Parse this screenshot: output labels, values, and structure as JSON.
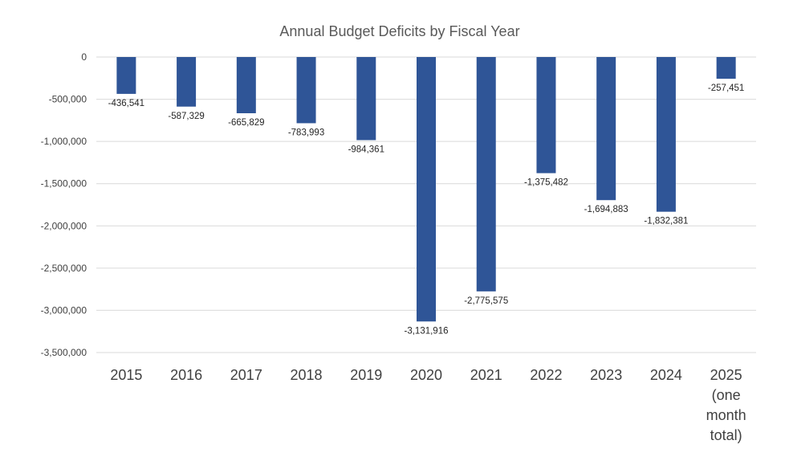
{
  "chart_data": {
    "type": "bar",
    "title": "Annual Budget Deficits by Fiscal Year",
    "xlabel": "",
    "ylabel": "",
    "categories": [
      "2015",
      "2016",
      "2017",
      "2018",
      "2019",
      "2020",
      "2021",
      "2022",
      "2023",
      "2024",
      "2025 (one month total)"
    ],
    "category_lines": [
      [
        "2015"
      ],
      [
        "2016"
      ],
      [
        "2017"
      ],
      [
        "2018"
      ],
      [
        "2019"
      ],
      [
        "2020"
      ],
      [
        "2021"
      ],
      [
        "2022"
      ],
      [
        "2023"
      ],
      [
        "2024"
      ],
      [
        "2025",
        "(one",
        "month",
        "total)"
      ]
    ],
    "values": [
      -436541,
      -587329,
      -665829,
      -783993,
      -984361,
      -3131916,
      -2775575,
      -1375482,
      -1694883,
      -1832381,
      -257451
    ],
    "data_labels": [
      "-436,541",
      "-587,329",
      "-665,829",
      "-783,993",
      "-984,361",
      "-3,131,916",
      "-2,775,575",
      "-1,375,482",
      "-1,694,883",
      "-1,832,381",
      "-257,451"
    ],
    "ylim": [
      -3500000,
      0
    ],
    "y_ticks": [
      0,
      -500000,
      -1000000,
      -1500000,
      -2000000,
      -2500000,
      -3000000,
      -3500000
    ],
    "y_tick_labels": [
      "0",
      "-500,000",
      "-1,000,000",
      "-1,500,000",
      "-2,000,000",
      "-2,500,000",
      "-3,000,000",
      "-3,500,000"
    ],
    "grid": true,
    "legend": "none",
    "bar_color": "#2F5597",
    "grid_color": "#D9D9D9"
  }
}
